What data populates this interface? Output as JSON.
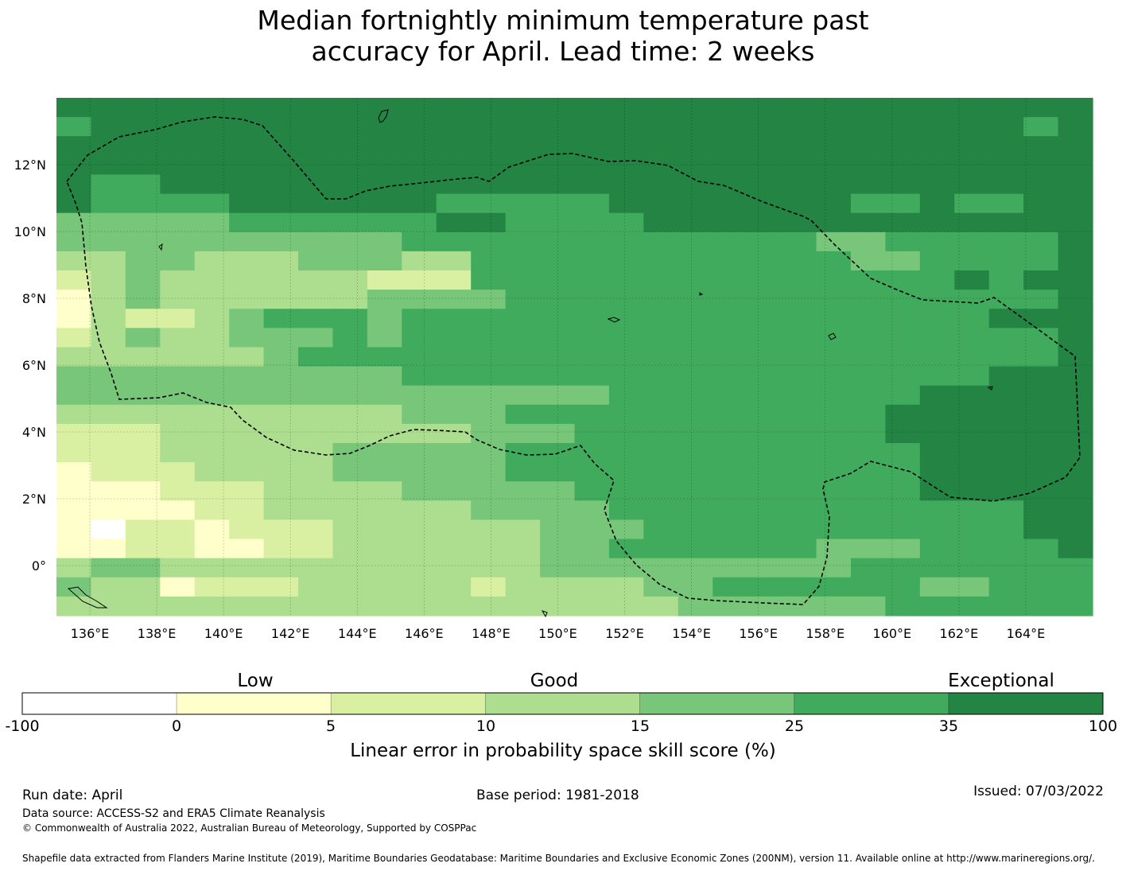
{
  "title_lines": [
    "Median fortnightly minimum temperature past",
    "accuracy for April. Lead time: 2 weeks"
  ],
  "map": {
    "lon_range": [
      135,
      166
    ],
    "lat_range": [
      -1.5,
      14
    ],
    "x_ticks": [
      136,
      138,
      140,
      142,
      144,
      146,
      148,
      150,
      152,
      154,
      156,
      158,
      160,
      162,
      164
    ],
    "x_tick_labels": [
      "136°E",
      "138°E",
      "140°E",
      "142°E",
      "144°E",
      "146°E",
      "148°E",
      "150°E",
      "152°E",
      "154°E",
      "156°E",
      "158°E",
      "160°E",
      "162°E",
      "164°E"
    ],
    "y_ticks": [
      12,
      10,
      8,
      6,
      4,
      2,
      0
    ],
    "y_tick_labels": [
      "12°N",
      "10°N",
      "8°N",
      "6°N",
      "4°N",
      "2°N",
      "0°"
    ],
    "grid_cell_degrees": 0.833,
    "grid_rows_top_to_bottom_category_index": [
      "666666666666666666666666666666",
      "566666666666666666666666666656",
      "666666666666666666666666666666",
      "666666666666666666666666666666",
      "655666666666666666666666666666",
      "655556666665555566666665565566",
      "444445555556655556666666666666",
      "444444444455555555555544555556",
      "334433344433555555555554455556",
      "234333333222555555555555556566",
      "134333333444455555555555555556",
      "132234555455555555555555555666",
      "234334445455555555555555555556",
      "333333455555555555555555555556",
      "444444444455555555555555555666",
      "444444444444444455555555566666",
      "333333333344455555555555666666",
      "222333333333444555555555666666",
      "222333334444455555555555566666",
      "122233334444455555555555566666",
      "111222333344444555555555566666",
      "111122333333444455555555555566",
      "102212223333334445555555555566",
      "112211223333334455555544455556",
      "344333333333334444444445555555",
      "433122233333233334455555544555",
      "333333333333333333444444555555"
    ],
    "eez_outline": "dashed black line around the Federated States of Micronesia EEZ"
  },
  "colorbar": {
    "words": [
      "Low",
      "Good",
      "Exceptional"
    ],
    "tick_labels": [
      "-100",
      "0",
      "5",
      "10",
      "15",
      "25",
      "35",
      "100"
    ],
    "colors": [
      "#ffffff",
      "#ffffcc",
      "#d9f0a3",
      "#addd8e",
      "#78c679",
      "#41ab5d",
      "#238443"
    ],
    "label": "Linear error in probability space skill score (%)"
  },
  "footer": {
    "run_date": "Run date: April",
    "base_period": "Base period: 1981-2018",
    "issued": "Issued: 07/03/2022",
    "data_source": "Data source: ACCESS-S2 and ERA5 Climate Reanalysis",
    "copyright": "© Commonwealth of Australia 2022, Australian Bureau of Meteorology, Supported by COSPPac",
    "shapefile": "Shapefile data extracted from Flanders Marine Institute (2019), Maritime Boundaries Geodatabase: Maritime Boundaries and Exclusive Economic Zones (200NM), version 11. Available online at http://www.marineregions.org/."
  }
}
